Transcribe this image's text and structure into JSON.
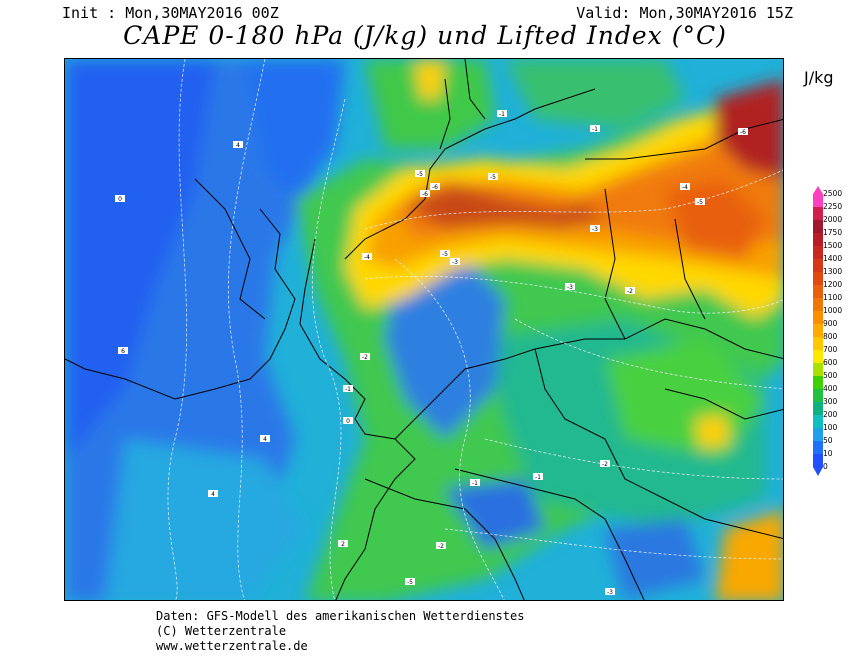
{
  "header": {
    "init": "Init : Mon,30MAY2016 00Z",
    "valid": "Valid: Mon,30MAY2016 15Z",
    "title": "CAPE 0-180 hPa (J/kg) und Lifted Index (°C)"
  },
  "legend": {
    "unit": "J/kg",
    "levels": [
      "2500",
      "2250",
      "2000",
      "1750",
      "1500",
      "1400",
      "1300",
      "1200",
      "1100",
      "1000",
      "900",
      "800",
      "700",
      "600",
      "500",
      "400",
      "300",
      "200",
      "100",
      "50",
      "10",
      "0"
    ],
    "colors": [
      "#ff40c0",
      "#d02050",
      "#a01830",
      "#b81c28",
      "#c82820",
      "#d83818",
      "#e04a10",
      "#e86010",
      "#f07808",
      "#f89000",
      "#ffaa00",
      "#ffc800",
      "#ffe800",
      "#a8e000",
      "#40d000",
      "#20c040",
      "#10b080",
      "#10c0c0",
      "#20a0e8",
      "#2070ff",
      "#2050ff"
    ]
  },
  "map": {
    "li_labels": [
      "-6",
      "-5",
      "-4",
      "-3",
      "-2",
      "-1",
      "0",
      "2",
      "4",
      "6"
    ]
  },
  "footer": {
    "line1": "Daten: GFS-Modell des amerikanischen Wetterdienstes",
    "line2": "(C) Wetterzentrale",
    "line3": "www.wetterzentrale.de"
  }
}
